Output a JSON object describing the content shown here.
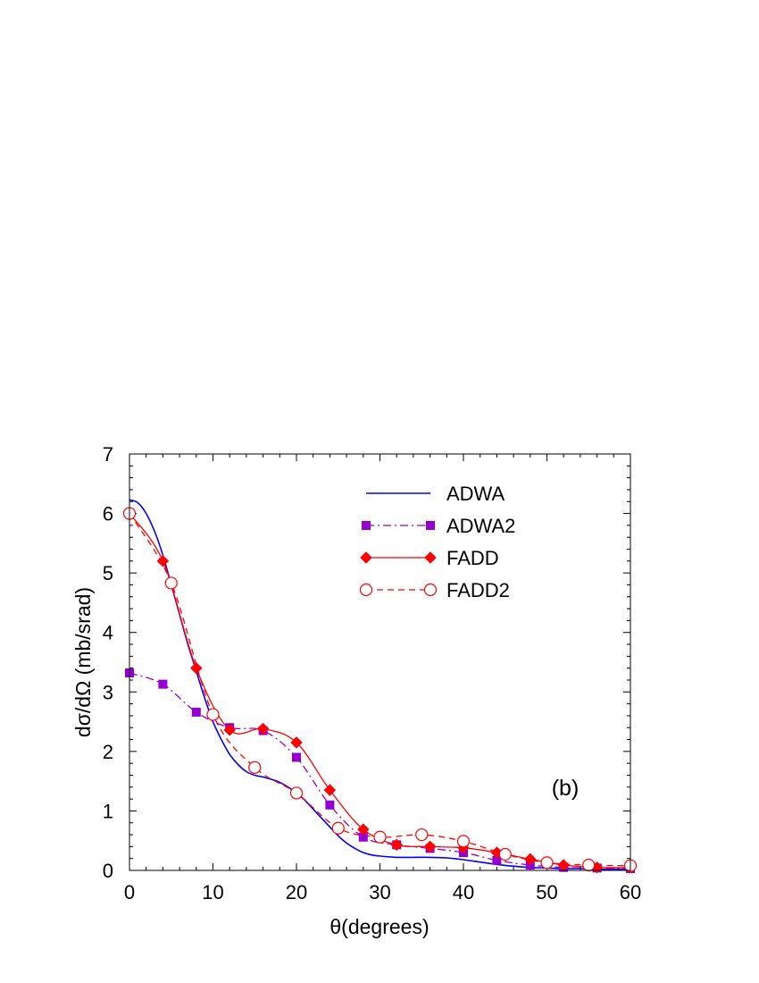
{
  "chart_data": {
    "type": "line",
    "title": "",
    "xlabel": "θ(degrees)",
    "ylabel": "dσ/dΩ (mb/srad)",
    "xlim": [
      0,
      60
    ],
    "ylim": [
      0,
      7
    ],
    "xticks": [
      0,
      10,
      20,
      30,
      40,
      50,
      60
    ],
    "yticks": [
      0,
      1,
      2,
      3,
      4,
      5,
      6,
      7
    ],
    "grid": false,
    "legend_position": "top-right",
    "annotation": "(b)",
    "series": [
      {
        "name": "ADWA",
        "style": "solid",
        "color": "#0000ff",
        "marker": "none",
        "x": [
          0,
          1,
          2,
          3,
          4,
          5,
          6,
          7,
          8,
          9,
          10,
          11,
          12,
          13,
          14,
          15,
          16,
          17,
          18,
          19,
          20,
          21,
          22,
          23,
          24,
          25,
          26,
          27,
          28,
          29,
          30,
          32,
          34,
          36,
          38,
          40,
          42,
          44,
          46,
          48,
          50,
          52,
          54,
          56,
          58,
          60
        ],
        "y": [
          6.23,
          6.18,
          6.0,
          5.7,
          5.3,
          4.8,
          4.3,
          3.8,
          3.35,
          2.9,
          2.5,
          2.2,
          1.95,
          1.78,
          1.66,
          1.6,
          1.57,
          1.53,
          1.48,
          1.4,
          1.3,
          1.18,
          1.03,
          0.88,
          0.73,
          0.58,
          0.46,
          0.37,
          0.3,
          0.26,
          0.24,
          0.22,
          0.22,
          0.22,
          0.21,
          0.18,
          0.14,
          0.1,
          0.07,
          0.05,
          0.04,
          0.03,
          0.03,
          0.02,
          0.02,
          0.02
        ]
      },
      {
        "name": "ADWA2",
        "style": "dashdot",
        "color": "#9400d3",
        "marker": "square",
        "x": [
          0,
          4,
          8,
          12,
          16,
          20,
          24,
          28,
          32,
          36,
          40,
          44,
          48,
          52,
          56,
          60
        ],
        "y": [
          3.32,
          3.13,
          2.66,
          2.4,
          2.35,
          1.9,
          1.1,
          0.56,
          0.43,
          0.37,
          0.3,
          0.17,
          0.09,
          0.05,
          0.04,
          0.03
        ]
      },
      {
        "name": "FADD",
        "style": "solid",
        "color": "#ff0000",
        "marker": "diamond",
        "x": [
          0,
          4,
          8,
          12,
          16,
          20,
          24,
          28,
          32,
          36,
          40,
          44,
          48,
          52,
          56,
          60
        ],
        "y": [
          6.0,
          5.2,
          3.4,
          2.36,
          2.38,
          2.15,
          1.35,
          0.69,
          0.43,
          0.4,
          0.38,
          0.3,
          0.19,
          0.09,
          0.05,
          0.05
        ]
      },
      {
        "name": "FADD2",
        "style": "dashed",
        "color": "#ff0000",
        "marker": "open-circle",
        "x": [
          0,
          5,
          10,
          15,
          20,
          25,
          30,
          35,
          40,
          45,
          50,
          55,
          60
        ],
        "y": [
          6.0,
          4.83,
          2.62,
          1.73,
          1.3,
          0.71,
          0.56,
          0.6,
          0.49,
          0.27,
          0.13,
          0.09,
          0.08
        ]
      }
    ]
  }
}
